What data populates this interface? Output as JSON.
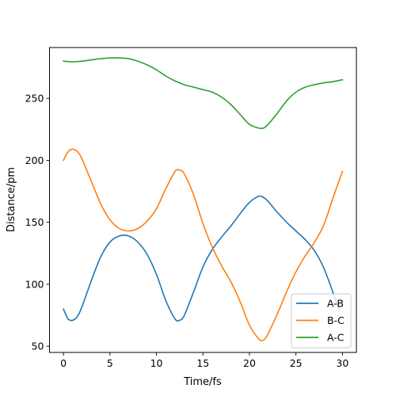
{
  "chart_data": {
    "type": "line",
    "title": "",
    "xlabel": "Time/fs",
    "ylabel": "Distance/pm",
    "xlim": [
      -1.5,
      31.5
    ],
    "ylim": [
      45,
      291
    ],
    "xticks": [
      0,
      5,
      10,
      15,
      20,
      25,
      30
    ],
    "yticks": [
      50,
      100,
      150,
      200,
      250
    ],
    "grid": false,
    "legend": "lower-right",
    "series": [
      {
        "name": "A-B",
        "color": "#1f77b4",
        "x": [
          0,
          0.5,
          1,
          1.5,
          2,
          3,
          4,
          5,
          6,
          7,
          8,
          9,
          10,
          11,
          12,
          12.5,
          13,
          14,
          15,
          16,
          17,
          18,
          19,
          20,
          21,
          21.5,
          22,
          23,
          24,
          25,
          26,
          27,
          28,
          29,
          29.7
        ],
        "y": [
          80,
          72,
          71,
          74,
          82,
          103,
          122,
          134,
          139,
          139,
          134,
          124,
          108,
          87,
          72,
          71,
          75,
          94,
          114,
          128,
          138,
          147,
          157,
          166,
          171,
          170,
          167,
          158,
          150,
          143,
          136,
          127,
          113,
          93,
          78
        ]
      },
      {
        "name": "B-C",
        "color": "#ff7f0e",
        "x": [
          0,
          0.5,
          1,
          1.5,
          2,
          3,
          4,
          5,
          6,
          7,
          8,
          9,
          10,
          11,
          12,
          12.5,
          13,
          14,
          15,
          16,
          17,
          18,
          19,
          20,
          21,
          21.5,
          22,
          23,
          24,
          25,
          26,
          27,
          28,
          29,
          30
        ],
        "y": [
          200,
          207,
          209,
          207,
          201,
          183,
          165,
          152,
          145,
          143,
          145,
          151,
          161,
          177,
          191,
          192,
          189,
          172,
          149,
          130,
          115,
          102,
          86,
          67,
          56,
          55,
          60,
          76,
          94,
          110,
          123,
          134,
          148,
          170,
          191
        ]
      },
      {
        "name": "A-C",
        "color": "#2ca02c",
        "x": [
          0,
          1,
          2,
          3,
          4,
          5,
          6,
          7,
          8,
          9,
          10,
          11,
          12,
          13,
          14,
          15,
          16,
          17,
          18,
          19,
          20,
          21,
          21.5,
          22,
          23,
          24,
          25,
          26,
          27,
          28,
          29,
          30
        ],
        "y": [
          280,
          279.5,
          280,
          281,
          282,
          282.6,
          282.6,
          282,
          280,
          277,
          273,
          268,
          264,
          261,
          259,
          257,
          255,
          251,
          245,
          237,
          229,
          226,
          226,
          229,
          238,
          248,
          255,
          259,
          261,
          262.5,
          263.5,
          265
        ]
      }
    ]
  }
}
